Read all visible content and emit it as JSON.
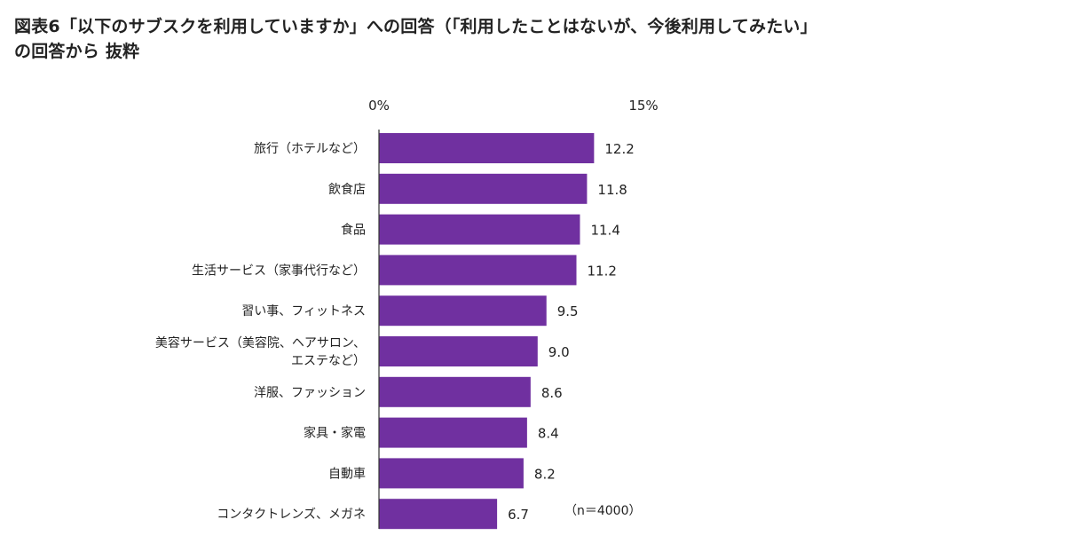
{
  "title": {
    "line1": "図表6「以下のサブスクを利用していますか」への回答（「利用したことはないが、今後利用してみたい」",
    "line2": "の回答から 抜粋"
  },
  "note": "（n＝4000）",
  "chart_data": {
    "type": "bar",
    "orientation": "horizontal",
    "title": "図表6「以下のサブスクを利用していますか」への回答（「利用したことはないが、今後利用してみたい」の回答から 抜粋",
    "unit": "%",
    "xlim": [
      0,
      15
    ],
    "ticks": [
      "0%",
      "15%"
    ],
    "grid": false,
    "color": "#7030a0",
    "categories": [
      [
        "旅行（ホテルなど）"
      ],
      [
        "飲食店"
      ],
      [
        "食品"
      ],
      [
        "生活サービス（家事代行など）"
      ],
      [
        "習い事、フィットネス"
      ],
      [
        "美容サービス（美容院、ヘアサロン、",
        "エステなど）"
      ],
      [
        "洋服、ファッション"
      ],
      [
        "家具・家電"
      ],
      [
        "自動車"
      ],
      [
        "コンタクトレンズ、メガネ"
      ]
    ],
    "values": [
      12.2,
      11.8,
      11.4,
      11.2,
      9.5,
      9.0,
      8.6,
      8.4,
      8.2,
      6.7
    ],
    "value_labels": [
      "12.2",
      "11.8",
      "11.4",
      "11.2",
      "9.5",
      "9.0",
      "8.6",
      "8.4",
      "8.2",
      "6.7"
    ]
  }
}
